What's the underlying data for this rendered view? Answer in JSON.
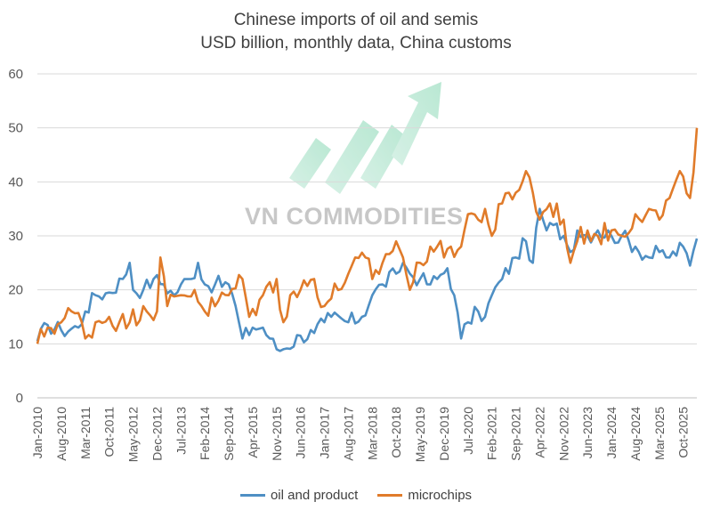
{
  "chart_data": {
    "type": "line",
    "title": "Chinese imports of oil and semis",
    "subtitle": "USD billion, monthly data,  China customs",
    "ylim": [
      0,
      60
    ],
    "yticks": [
      "0",
      "10",
      "20",
      "30",
      "40",
      "50",
      "60"
    ],
    "xtick_labels": [
      "Jan-2010",
      "Aug-2010",
      "Mar-2011",
      "Oct-2011",
      "May-2012",
      "Dec-2012",
      "Jul-2013",
      "Feb-2014",
      "Sep-2014",
      "Apr-2015",
      "Nov-2015",
      "Jun-2016",
      "Jan-2017",
      "Aug-2017",
      "Mar-2018",
      "Oct-2018",
      "May-2019",
      "Dec-2019",
      "Jul-2020",
      "Feb-2021",
      "Sep-2021",
      "Apr-2022",
      "Nov-2022",
      "Jun-2023",
      "Jan-2024",
      "Aug-2024",
      "Mar-2025",
      "Oct-2025"
    ],
    "grid": true,
    "legend_position": "bottom",
    "x_start": "Jan-2010",
    "x_end": "Feb-2026",
    "series": [
      {
        "name": "oil and product",
        "color": "#4e8fc4",
        "anchors": [
          [
            "Jan-2010",
            10.5
          ],
          [
            "Apr-2010",
            13.5
          ],
          [
            "Aug-2010",
            12.5
          ],
          [
            "Jan-2011",
            13
          ],
          [
            "Mar-2011",
            16
          ],
          [
            "Jun-2011",
            19
          ],
          [
            "Oct-2011",
            19.5
          ],
          [
            "Feb-2012",
            22
          ],
          [
            "Apr-2012",
            25
          ],
          [
            "May-2012",
            20
          ],
          [
            "Aug-2012",
            20
          ],
          [
            "Nov-2012",
            22
          ],
          [
            "Feb-2013",
            21
          ],
          [
            "May-2013",
            19
          ],
          [
            "Jul-2013",
            21
          ],
          [
            "Oct-2013",
            22
          ],
          [
            "Dec-2013",
            25
          ],
          [
            "Feb-2014",
            21
          ],
          [
            "May-2014",
            21
          ],
          [
            "Sep-2014",
            21
          ],
          [
            "Nov-2014",
            17
          ],
          [
            "Dec-2014",
            14
          ],
          [
            "Jan-2015",
            11
          ],
          [
            "Apr-2015",
            13
          ],
          [
            "Jul-2015",
            13
          ],
          [
            "Sep-2015",
            11
          ],
          [
            "Nov-2015",
            9
          ],
          [
            "Jan-2016",
            9
          ],
          [
            "Jun-2016",
            11.5
          ],
          [
            "Oct-2016",
            12
          ],
          [
            "Jan-2017",
            14
          ],
          [
            "Mar-2017",
            15
          ],
          [
            "Aug-2017",
            14
          ],
          [
            "Dec-2017",
            15
          ],
          [
            "Mar-2018",
            19
          ],
          [
            "Jun-2018",
            21
          ],
          [
            "Oct-2018",
            23
          ],
          [
            "Dec-2018",
            25
          ],
          [
            "Feb-2019",
            23
          ],
          [
            "May-2019",
            22
          ],
          [
            "Aug-2019",
            21
          ],
          [
            "Oct-2019",
            22
          ],
          [
            "Jan-2020",
            24
          ],
          [
            "Mar-2020",
            19
          ],
          [
            "May-2020",
            11
          ],
          [
            "Jul-2020",
            14
          ],
          [
            "Oct-2020",
            16
          ],
          [
            "Dec-2020",
            15
          ],
          [
            "Feb-2021",
            19
          ],
          [
            "May-2021",
            22
          ],
          [
            "Sep-2021",
            26
          ],
          [
            "Dec-2021",
            29
          ],
          [
            "Feb-2022",
            25
          ],
          [
            "Apr-2022",
            35
          ],
          [
            "Jun-2022",
            31
          ],
          [
            "Aug-2022",
            32
          ],
          [
            "Nov-2022",
            30
          ],
          [
            "Jan-2023",
            27
          ],
          [
            "Mar-2023",
            31
          ],
          [
            "Jun-2023",
            30
          ],
          [
            "Sep-2023",
            31
          ],
          [
            "Jan-2024",
            30
          ],
          [
            "Apr-2024",
            30
          ],
          [
            "Aug-2024",
            28
          ],
          [
            "Dec-2024",
            26
          ],
          [
            "Mar-2025",
            27
          ],
          [
            "Jun-2025",
            26
          ],
          [
            "Oct-2025",
            28
          ],
          [
            "Dec-2025",
            24.5
          ],
          [
            "Feb-2026",
            29.5
          ]
        ]
      },
      {
        "name": "microchips",
        "color": "#e07b2a",
        "anchors": [
          [
            "Jan-2010",
            10
          ],
          [
            "Apr-2010",
            13
          ],
          [
            "Aug-2010",
            14
          ],
          [
            "Nov-2010",
            16
          ],
          [
            "Feb-2011",
            14
          ],
          [
            "Mar-2011",
            11
          ],
          [
            "Jun-2011",
            14
          ],
          [
            "Oct-2011",
            15
          ],
          [
            "Jan-2012",
            14
          ],
          [
            "Apr-2012",
            14
          ],
          [
            "Aug-2012",
            17
          ],
          [
            "Dec-2012",
            16
          ],
          [
            "Jan-2013",
            26
          ],
          [
            "Mar-2013",
            17
          ],
          [
            "Jul-2013",
            19
          ],
          [
            "Nov-2013",
            20
          ],
          [
            "Feb-2014",
            16
          ],
          [
            "Jun-2014",
            18
          ],
          [
            "Sep-2014",
            19
          ],
          [
            "Jan-2015",
            22
          ],
          [
            "Mar-2015",
            15
          ],
          [
            "Jul-2015",
            19
          ],
          [
            "Nov-2015",
            22
          ],
          [
            "Jan-2016",
            14
          ],
          [
            "Mar-2016",
            19
          ],
          [
            "Jun-2016",
            20
          ],
          [
            "Oct-2016",
            22
          ],
          [
            "Jan-2017",
            17
          ],
          [
            "Aug-2017",
            23
          ],
          [
            "Jan-2018",
            26
          ],
          [
            "Mar-2018",
            22
          ],
          [
            "Jun-2018",
            25
          ],
          [
            "Oct-2018",
            29
          ],
          [
            "Dec-2018",
            26
          ],
          [
            "Feb-2019",
            20
          ],
          [
            "May-2019",
            25
          ],
          [
            "Aug-2019",
            28
          ],
          [
            "Oct-2019",
            28
          ],
          [
            "Dec-2019",
            26
          ],
          [
            "Feb-2020",
            28
          ],
          [
            "May-2020",
            28
          ],
          [
            "Jul-2020",
            34
          ],
          [
            "Oct-2020",
            33
          ],
          [
            "Dec-2020",
            35
          ],
          [
            "Feb-2021",
            30
          ],
          [
            "May-2021",
            36
          ],
          [
            "Sep-2021",
            38
          ],
          [
            "Dec-2021",
            42
          ],
          [
            "Feb-2022",
            38
          ],
          [
            "Apr-2022",
            33
          ],
          [
            "Jul-2022",
            36
          ],
          [
            "Nov-2022",
            33
          ],
          [
            "Jan-2023",
            25
          ],
          [
            "Mar-2023",
            29
          ],
          [
            "Jun-2023",
            31
          ],
          [
            "Sep-2023",
            30
          ],
          [
            "Jan-2024",
            31
          ],
          [
            "Apr-2024",
            30
          ],
          [
            "Aug-2024",
            34
          ],
          [
            "Dec-2024",
            35
          ],
          [
            "Mar-2025",
            33
          ],
          [
            "Jun-2025",
            37
          ],
          [
            "Oct-2025",
            41
          ],
          [
            "Dec-2025",
            37
          ],
          [
            "Feb-2026",
            50
          ]
        ]
      }
    ]
  },
  "watermark_text": "VN COMMODITIES"
}
